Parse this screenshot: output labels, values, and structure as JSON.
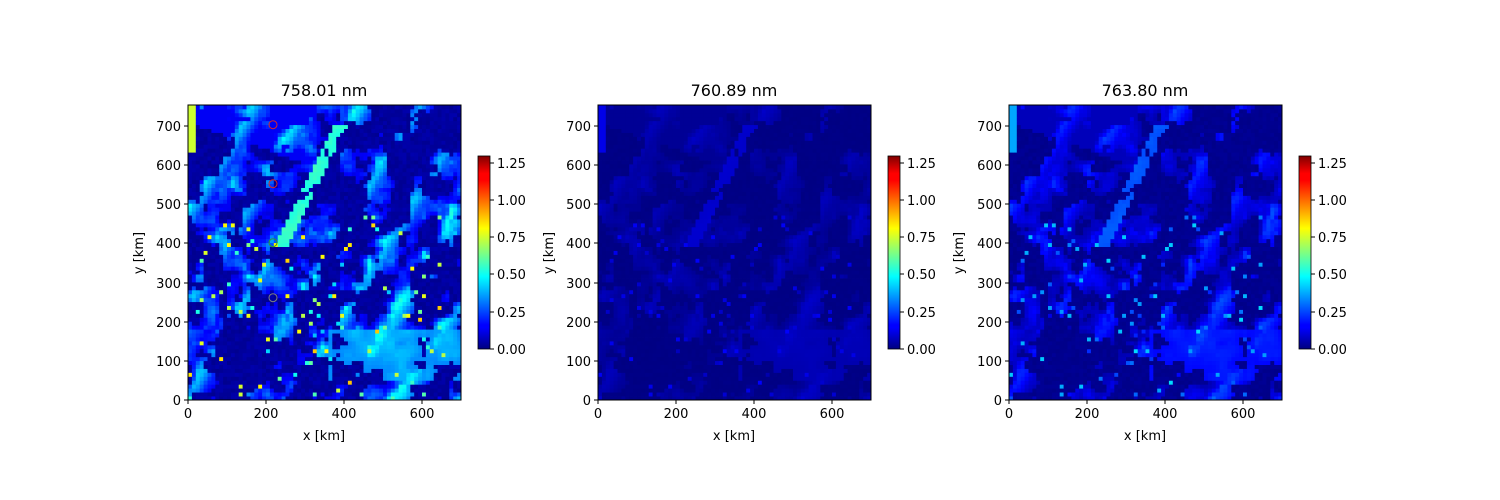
{
  "chart_data": [
    {
      "type": "heatmap",
      "title": "758.01 nm",
      "xlabel": "x [km]",
      "ylabel": "y [km]",
      "xlim": [
        0,
        700
      ],
      "ylim": [
        0,
        750
      ],
      "xticks": [
        "0",
        "200",
        "400",
        "600"
      ],
      "yticks": [
        "0",
        "100",
        "200",
        "300",
        "400",
        "500",
        "600",
        "700"
      ],
      "colormap": "jet",
      "colorbar": {
        "min": 0,
        "max": 1.3,
        "ticks": [
          "0.00",
          "0.25",
          "0.50",
          "0.75",
          "1.00",
          "1.25"
        ]
      },
      "intensity": 1.0,
      "markers": [
        {
          "x": 218,
          "y": 700,
          "color": "#d62728"
        },
        {
          "x": 218,
          "y": 550,
          "color": "#d62728"
        },
        {
          "x": 218,
          "y": 400,
          "color": "#2ca02c"
        },
        {
          "x": 218,
          "y": 260,
          "color": "#7f7f7f"
        }
      ]
    },
    {
      "type": "heatmap",
      "title": "760.89 nm",
      "xlabel": "x [km]",
      "ylabel": "y [km]",
      "xlim": [
        0,
        700
      ],
      "ylim": [
        0,
        750
      ],
      "xticks": [
        "0",
        "200",
        "400",
        "600"
      ],
      "yticks": [
        "0",
        "100",
        "200",
        "300",
        "400",
        "500",
        "600",
        "700"
      ],
      "colormap": "jet",
      "colorbar": {
        "min": 0,
        "max": 1.3,
        "ticks": [
          "0.00",
          "0.25",
          "0.50",
          "0.75",
          "1.00",
          "1.25"
        ]
      },
      "intensity": 0.18,
      "markers": []
    },
    {
      "type": "heatmap",
      "title": "763.80 nm",
      "xlabel": "x [km]",
      "ylabel": "y [km]",
      "xlim": [
        0,
        700
      ],
      "ylim": [
        0,
        750
      ],
      "xticks": [
        "0",
        "200",
        "400",
        "600"
      ],
      "yticks": [
        "0",
        "100",
        "200",
        "300",
        "400",
        "500",
        "600",
        "700"
      ],
      "colormap": "jet",
      "colorbar": {
        "min": 0,
        "max": 1.3,
        "ticks": [
          "0.00",
          "0.25",
          "0.50",
          "0.75",
          "1.00",
          "1.25"
        ]
      },
      "intensity": 0.5,
      "markers": []
    }
  ]
}
